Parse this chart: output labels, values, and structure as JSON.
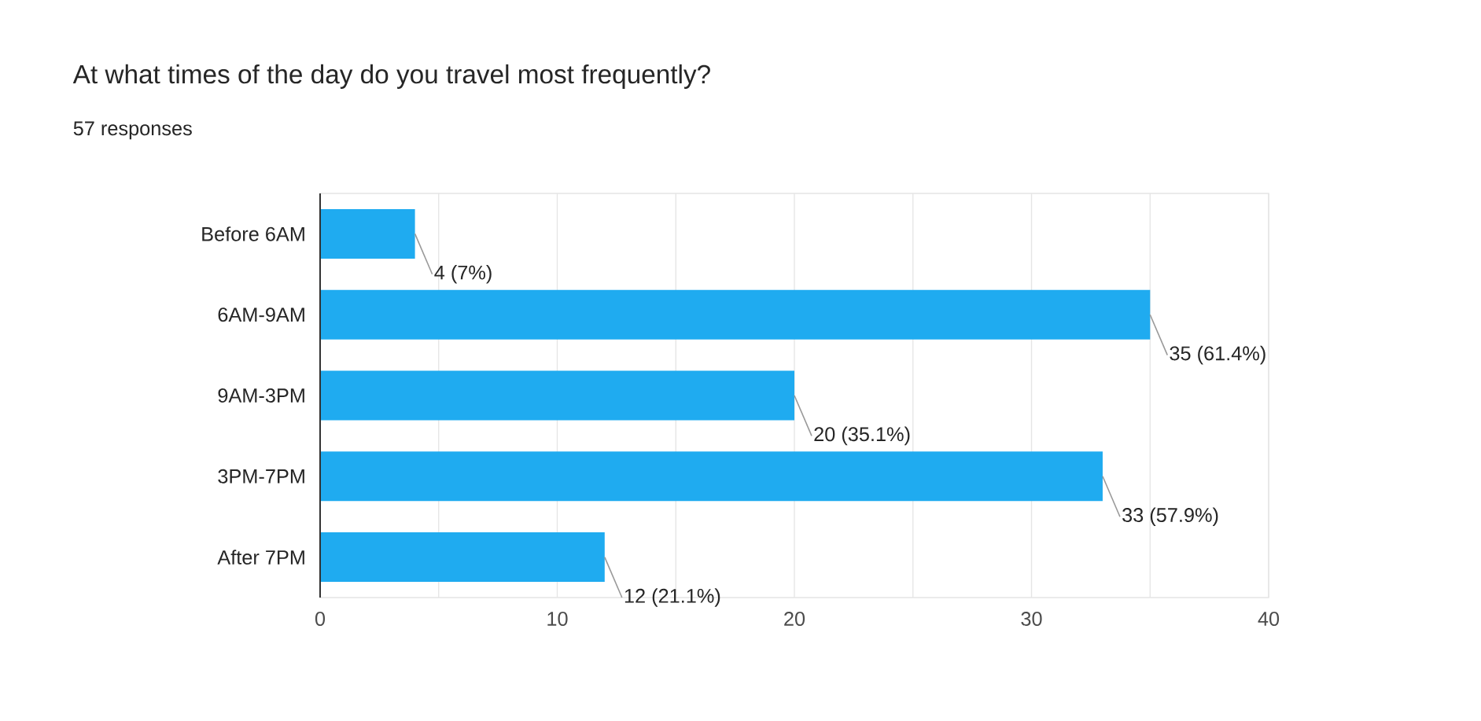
{
  "chart_data": {
    "type": "bar",
    "orientation": "horizontal",
    "title": "At what times of the day do you travel most frequently?",
    "subtitle": "57 responses",
    "categories": [
      "Before 6AM",
      "6AM-9AM",
      "9AM-3PM",
      "3PM-7PM",
      "After 7PM"
    ],
    "values": [
      4,
      35,
      20,
      33,
      12
    ],
    "value_labels": [
      "4 (7%)",
      "35 (61.4%)",
      "20 (35.1%)",
      "33 (57.9%)",
      "12 (21.1%)"
    ],
    "color": "#1fabf0",
    "xlim": [
      0,
      40
    ],
    "xticks": [
      0,
      10,
      20,
      30,
      40
    ],
    "grid": "x"
  }
}
